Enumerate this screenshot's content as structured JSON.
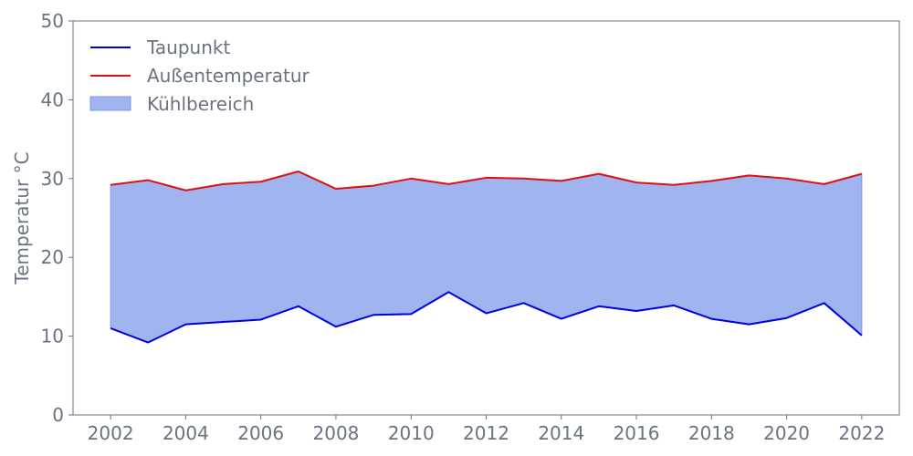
{
  "chart_data": {
    "type": "area",
    "title": "",
    "xlabel": "",
    "ylabel": "Temperatur °C",
    "x": [
      2002,
      2003,
      2004,
      2005,
      2006,
      2007,
      2008,
      2009,
      2010,
      2011,
      2012,
      2013,
      2014,
      2015,
      2016,
      2017,
      2018,
      2019,
      2020,
      2021,
      2022
    ],
    "x_ticks": [
      2002,
      2004,
      2006,
      2008,
      2010,
      2012,
      2014,
      2016,
      2018,
      2020,
      2022
    ],
    "xlim": [
      2001,
      2023
    ],
    "ylim": [
      0,
      50
    ],
    "y_ticks": [
      0,
      10,
      20,
      30,
      40,
      50
    ],
    "grid": false,
    "legend_position": "top-left",
    "series": [
      {
        "name": "Taupunkt",
        "kind": "line",
        "color": "#0000dd",
        "values": [
          11.0,
          9.2,
          11.5,
          11.8,
          12.1,
          13.8,
          11.2,
          12.7,
          12.8,
          15.6,
          12.9,
          14.2,
          12.2,
          13.8,
          13.2,
          13.9,
          12.2,
          11.5,
          12.3,
          14.2,
          10.1
        ]
      },
      {
        "name": "Außentemperatur",
        "kind": "line",
        "color": "#dd1111",
        "values": [
          29.2,
          29.8,
          28.5,
          29.3,
          29.6,
          30.9,
          28.7,
          29.1,
          30.0,
          29.3,
          30.1,
          30.0,
          29.7,
          30.6,
          29.5,
          29.2,
          29.7,
          30.4,
          30.0,
          29.3,
          30.6
        ]
      }
    ],
    "fill": {
      "name": "Kühlbereich",
      "between": [
        "Taupunkt",
        "Außentemperatur"
      ],
      "color": "#a0b4f0",
      "edge_color": "#7f96e8"
    }
  }
}
